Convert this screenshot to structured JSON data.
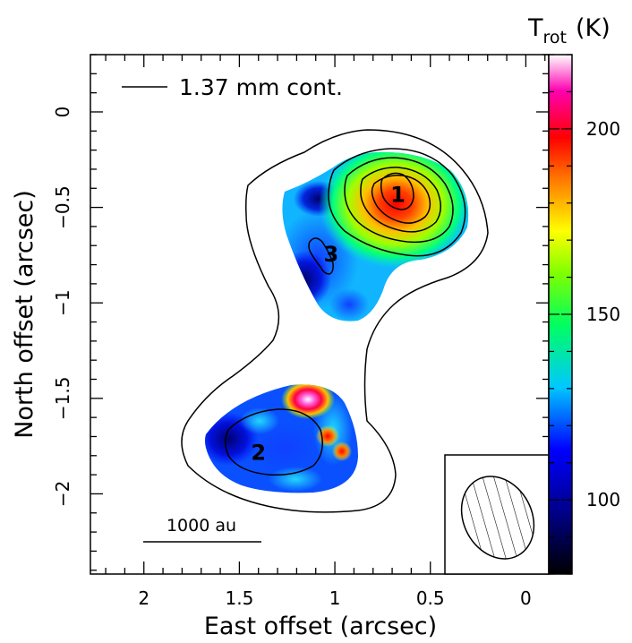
{
  "chart_data": {
    "type": "heatmap",
    "xlabel": "East offset (arcsec)",
    "ylabel": "North offset (arcsec)",
    "xlim": [
      2.28,
      -0.12
    ],
    "ylim": [
      -2.42,
      0.3
    ],
    "x_ticks": [
      2,
      1.5,
      1,
      0.5,
      0
    ],
    "x_tick_labels": [
      "2",
      "1.5",
      "1",
      "0.5",
      "0"
    ],
    "y_ticks": [
      0,
      -0.5,
      -1,
      -1.5,
      -2
    ],
    "y_tick_labels": [
      "0",
      "−0.5",
      "−1",
      "−1.5",
      "−2"
    ],
    "colorbar": {
      "label_main": "T",
      "label_sub": "rot",
      "label_unit": "(K)",
      "range": [
        80,
        220
      ],
      "ticks": [
        100,
        150,
        200
      ],
      "tick_labels": [
        "100",
        "150",
        "200"
      ]
    },
    "contour_legend": "1.37 mm cont.",
    "scale_bar": {
      "label": "1000  au",
      "length_arcsec": 0.62
    },
    "sources": [
      {
        "label": "1",
        "x": 0.67,
        "y": -0.43,
        "peak_temperature": 190
      },
      {
        "label": "2",
        "x": 1.4,
        "y": -1.78,
        "peak_temperature": 105
      },
      {
        "label": "3",
        "x": 1.02,
        "y": -0.74,
        "peak_temperature": 100
      }
    ],
    "hot_spots": [
      {
        "x": 1.13,
        "y": -1.55,
        "temperature": 215
      },
      {
        "x": 1.02,
        "y": -1.67,
        "temperature": 185
      },
      {
        "x": 0.95,
        "y": -1.77,
        "temperature": 180
      }
    ],
    "colors": {
      "colormap": [
        "#000000",
        "#000088",
        "#0000ff",
        "#00ddff",
        "#00ff00",
        "#ffff00",
        "#ff0000",
        "#ff00aa",
        "#ffffff"
      ]
    }
  }
}
